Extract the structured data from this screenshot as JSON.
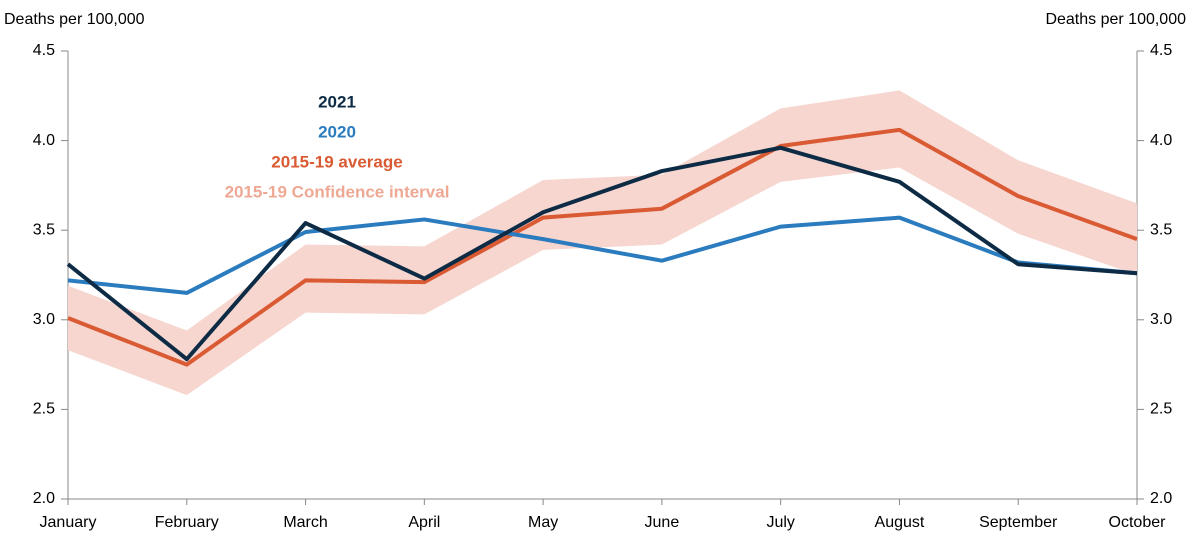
{
  "chart_data": {
    "type": "line",
    "y_label_left": "Deaths per 100,000",
    "y_label_right": "Deaths per 100,000",
    "categories": [
      "January",
      "February",
      "March",
      "April",
      "May",
      "June",
      "July",
      "August",
      "September",
      "October"
    ],
    "band": {
      "name": "2015-19 Confidence interval",
      "color": "#f6d6cf",
      "upper": [
        3.19,
        2.94,
        3.42,
        3.41,
        3.78,
        3.81,
        4.18,
        4.28,
        3.89,
        3.65
      ],
      "lower": [
        2.83,
        2.58,
        3.04,
        3.03,
        3.39,
        3.42,
        3.77,
        3.85,
        3.48,
        3.25
      ]
    },
    "series": [
      {
        "name": "2015-19 average",
        "color": "#d95a33",
        "values": [
          3.01,
          2.75,
          3.22,
          3.21,
          3.57,
          3.62,
          3.97,
          4.06,
          3.69,
          3.45
        ]
      },
      {
        "name": "2020",
        "color": "#2b7bbf",
        "values": [
          3.22,
          3.15,
          3.49,
          3.56,
          3.45,
          3.33,
          3.52,
          3.57,
          3.32,
          3.26
        ]
      },
      {
        "name": "2021",
        "color": "#0d2b45",
        "values": [
          3.31,
          2.78,
          3.54,
          3.23,
          3.6,
          3.83,
          3.96,
          3.77,
          3.31,
          3.26
        ]
      }
    ],
    "ylim": [
      2.0,
      4.5
    ],
    "yticks": [
      {
        "value": 2.0,
        "label": "2.0"
      },
      {
        "value": 2.5,
        "label": "2.5"
      },
      {
        "value": 3.0,
        "label": "3.0"
      },
      {
        "value": 3.5,
        "label": "3.5"
      },
      {
        "value": 4.0,
        "label": "4.0"
      },
      {
        "value": 4.5,
        "label": "4.5"
      }
    ],
    "grid": false
  }
}
